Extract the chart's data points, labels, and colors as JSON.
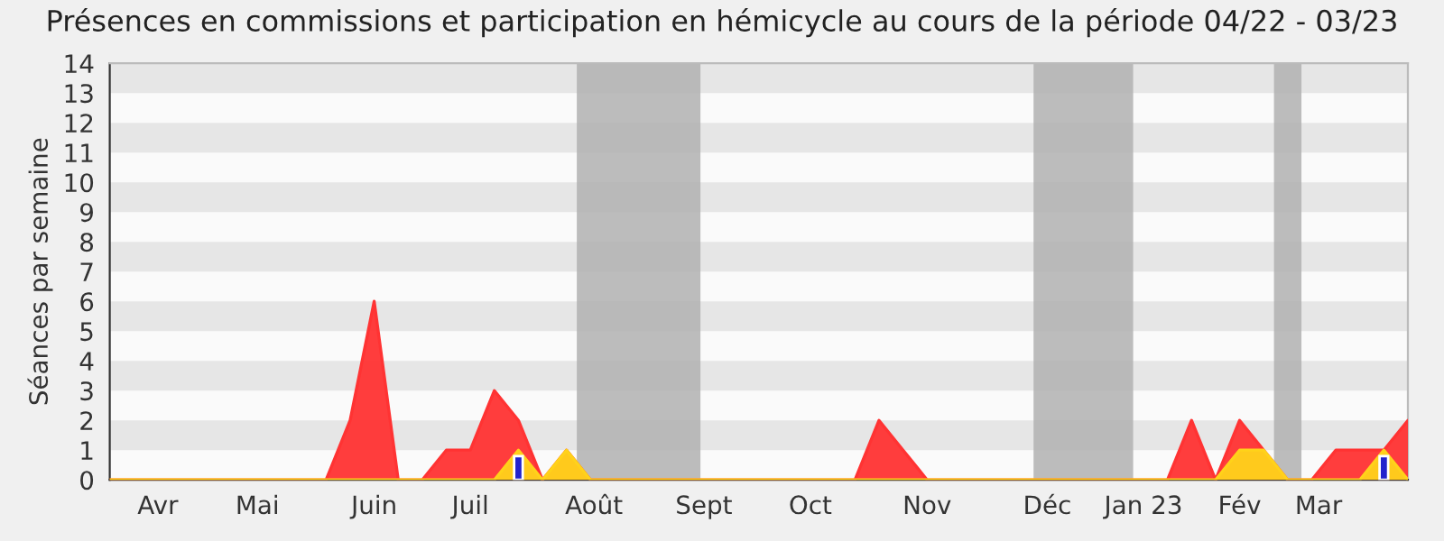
{
  "chart_data": {
    "type": "area",
    "title": "Présences en commissions et participation en hémicycle au cours de la période 04/22 - 03/23",
    "ylabel": "Séances par semaine",
    "x": [
      "2022-03-14",
      "2022-03-21",
      "2022-03-28",
      "2022-04-04",
      "2022-04-11",
      "2022-04-18",
      "2022-04-25",
      "2022-05-02",
      "2022-05-09",
      "2022-05-16",
      "2022-05-23",
      "2022-05-30",
      "2022-06-06",
      "2022-06-13",
      "2022-06-20",
      "2022-06-27",
      "2022-07-04",
      "2022-07-11",
      "2022-07-18",
      "2022-07-25",
      "2022-08-01",
      "2022-08-08",
      "2022-08-15",
      "2022-08-22",
      "2022-08-29",
      "2022-09-05",
      "2022-09-12",
      "2022-09-19",
      "2022-09-26",
      "2022-10-03",
      "2022-10-10",
      "2022-10-17",
      "2022-10-24",
      "2022-10-31",
      "2022-11-07",
      "2022-11-14",
      "2022-11-21",
      "2022-11-28",
      "2022-12-05",
      "2022-12-12",
      "2022-12-19",
      "2022-12-26",
      "2023-01-02",
      "2023-01-09",
      "2023-01-16",
      "2023-01-23",
      "2023-01-30",
      "2023-02-06",
      "2023-02-13",
      "2023-02-20",
      "2023-02-27",
      "2023-03-06",
      "2023-03-13",
      "2023-03-20",
      "2023-03-27"
    ],
    "xlim": [
      "2022-03-14",
      "2023-03-27"
    ],
    "xticks": [
      {
        "value": "2022-03-28",
        "label": "Avr"
      },
      {
        "value": "2022-04-26",
        "label": "Mai"
      },
      {
        "value": "2022-05-30",
        "label": "Juin"
      },
      {
        "value": "2022-06-27",
        "label": "Juil"
      },
      {
        "value": "2022-08-02",
        "label": "Août"
      },
      {
        "value": "2022-09-03",
        "label": "Sept"
      },
      {
        "value": "2022-10-04",
        "label": "Oct"
      },
      {
        "value": "2022-11-07",
        "label": "Nov"
      },
      {
        "value": "2022-12-12",
        "label": "Déc"
      },
      {
        "value": "2023-01-09",
        "label": "Jan 23"
      },
      {
        "value": "2023-02-06",
        "label": "Fév"
      },
      {
        "value": "2023-03-01",
        "label": "Mar"
      }
    ],
    "bands": [
      {
        "axis": "x",
        "from": "2022-07-28",
        "to": "2022-09-02",
        "color": "#b0b0b0"
      },
      {
        "axis": "x",
        "from": "2022-12-08",
        "to": "2023-01-06",
        "color": "#b0b0b0"
      },
      {
        "axis": "x",
        "from": "2023-02-16",
        "to": "2023-02-24",
        "color": "#b0b0b0"
      }
    ],
    "series": [
      {
        "color": "#ff3333",
        "values": [
          0,
          0,
          0,
          0,
          0,
          0,
          0,
          0,
          0,
          0,
          2,
          6,
          0,
          0,
          1,
          1,
          3,
          2,
          0,
          1,
          0,
          0,
          0,
          0,
          0,
          0,
          0,
          0,
          0,
          0,
          0,
          0,
          2,
          1,
          0,
          0,
          0,
          0,
          0,
          0,
          0,
          0,
          0,
          0,
          0,
          2,
          0,
          2,
          1,
          0,
          0,
          1,
          1,
          1,
          2
        ]
      },
      {
        "color": "#ffd21a",
        "values": [
          0,
          0,
          0,
          0,
          0,
          0,
          0,
          0,
          0,
          0,
          0,
          0,
          0,
          0,
          0,
          0,
          0,
          1,
          0,
          1,
          0,
          0,
          0,
          0,
          0,
          0,
          0,
          0,
          0,
          0,
          0,
          0,
          0,
          0,
          0,
          0,
          0,
          0,
          0,
          0,
          0,
          0,
          0,
          0,
          0,
          0,
          0,
          1,
          1,
          0,
          0,
          0,
          0,
          1,
          0
        ]
      },
      {
        "type": "bar",
        "color": "#2222cc",
        "values": [
          null,
          null,
          null,
          null,
          null,
          null,
          null,
          null,
          null,
          null,
          null,
          null,
          null,
          null,
          null,
          null,
          null,
          0.8,
          null,
          null,
          null,
          null,
          null,
          null,
          null,
          null,
          null,
          null,
          null,
          null,
          null,
          null,
          null,
          null,
          null,
          null,
          null,
          null,
          null,
          null,
          null,
          null,
          null,
          null,
          null,
          null,
          null,
          null,
          null,
          null,
          null,
          null,
          null,
          0.8,
          null
        ]
      }
    ],
    "ylim": [
      0,
      14
    ],
    "yticks": [
      0,
      1,
      2,
      3,
      4,
      5,
      6,
      7,
      8,
      9,
      10,
      11,
      12,
      13,
      14
    ],
    "legend": false
  }
}
